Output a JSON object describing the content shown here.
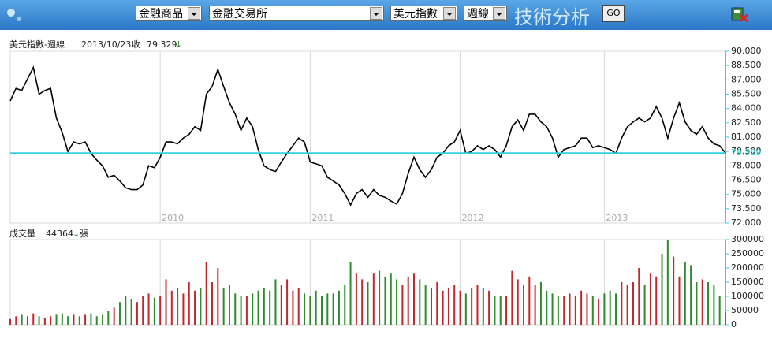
{
  "toolbar": {
    "product": "金融商品",
    "exchange": "金融交易所",
    "symbol": "美元指數",
    "period": "週線",
    "title": "技術分析",
    "button": "GO"
  },
  "chart_data": [
    {
      "type": "line",
      "title": "美元指數-週線",
      "date": "2013/10/23",
      "close_label": "收",
      "close": 79.329,
      "trend": "↓",
      "color": "#000000",
      "close_line_color": "#33d0e0",
      "grid": true,
      "categories": [
        null,
        null,
        null,
        null,
        null,
        null,
        null,
        null,
        null,
        null,
        null,
        null,
        null,
        null,
        null,
        null,
        null,
        null,
        null,
        null,
        null,
        null,
        null,
        null,
        null,
        null,
        "2010",
        null,
        null,
        null,
        null,
        null,
        null,
        null,
        null,
        null,
        null,
        null,
        null,
        null,
        null,
        null,
        null,
        null,
        null,
        null,
        null,
        null,
        null,
        null,
        null,
        null,
        "2011",
        null,
        null,
        null,
        null,
        null,
        null,
        null,
        null,
        null,
        null,
        null,
        null,
        null,
        null,
        null,
        null,
        null,
        null,
        null,
        null,
        null,
        null,
        null,
        null,
        null,
        "2012",
        null,
        null,
        null,
        null,
        null,
        null,
        null,
        null,
        null,
        null,
        null,
        null,
        null,
        null,
        null,
        null,
        null,
        null,
        null,
        null,
        null,
        null,
        null,
        null,
        "2013",
        null,
        null,
        null,
        null,
        null,
        null,
        null,
        null,
        null,
        null,
        null,
        null,
        null,
        null,
        null,
        null,
        null,
        null,
        null,
        null,
        null
      ],
      "values": [
        84.8,
        86.1,
        85.9,
        87.1,
        88.3,
        85.5,
        85.9,
        86.1,
        83,
        81.5,
        79.5,
        80.5,
        80.3,
        80.5,
        79.3,
        78.6,
        78,
        76.8,
        77,
        76.4,
        75.7,
        75.5,
        75.5,
        76,
        78,
        77.8,
        78.9,
        80.5,
        80.5,
        80.3,
        80.9,
        81.3,
        82.1,
        81.7,
        85.5,
        86.3,
        88.1,
        86.3,
        84.6,
        83.4,
        81.7,
        83,
        82.1,
        79.7,
        78,
        77.6,
        77.4,
        78.4,
        79.3,
        80.1,
        80.9,
        80.5,
        78.4,
        78.2,
        78,
        76.8,
        76.4,
        76,
        75.1,
        73.9,
        75.1,
        75.5,
        74.7,
        75.5,
        74.9,
        74.7,
        74.3,
        74,
        75.1,
        77.2,
        78.9,
        77.6,
        76.8,
        77.6,
        78.9,
        79.3,
        80.1,
        80.5,
        81.7,
        79.3,
        79.5,
        80.1,
        79.7,
        80.1,
        79.7,
        78.9,
        80.1,
        82.1,
        82.8,
        81.7,
        83.4,
        83.4,
        82.6,
        82.1,
        80.9,
        78.9,
        79.7,
        79.9,
        80.1,
        80.9,
        80.9,
        79.9,
        80.1,
        79.9,
        79.7,
        79.3,
        80.9,
        82.1,
        82.6,
        83,
        82.6,
        83,
        84.2,
        83,
        80.9,
        83,
        84.6,
        82.6,
        81.7,
        81.3,
        82.1,
        80.9,
        80.3,
        80.1,
        79.329
      ],
      "ylim": [
        72,
        90
      ],
      "yticks": [
        {
          "value": 90,
          "label": "90.000"
        },
        {
          "value": 88.5,
          "label": "88.500"
        },
        {
          "value": 87,
          "label": "87.000"
        },
        {
          "value": 85.5,
          "label": "85.500"
        },
        {
          "value": 84,
          "label": "84.000"
        },
        {
          "value": 82.5,
          "label": "82.500"
        },
        {
          "value": 81,
          "label": "81.000"
        },
        {
          "value": 79.5,
          "label": "79.500"
        },
        {
          "value": 78,
          "label": "78.000"
        },
        {
          "value": 76.5,
          "label": "76.500"
        },
        {
          "value": 75,
          "label": "75.000"
        },
        {
          "value": 73.5,
          "label": "73.500"
        },
        {
          "value": 72,
          "label": "72.000"
        }
      ]
    },
    {
      "type": "bar",
      "title": "成交量",
      "last": 44364,
      "trend": "↓",
      "unit": "張",
      "up_color": "#c0282e",
      "down_color": "#2e8b2e",
      "grid": true,
      "values": [
        20000,
        30000,
        35000,
        30000,
        40000,
        30000,
        25000,
        30000,
        35000,
        40000,
        30000,
        35000,
        30000,
        35000,
        40000,
        30000,
        35000,
        50000,
        60000,
        80000,
        100000,
        90000,
        80000,
        100000,
        110000,
        95000,
        100000,
        160000,
        120000,
        130000,
        110000,
        150000,
        120000,
        130000,
        220000,
        150000,
        200000,
        130000,
        140000,
        110000,
        100000,
        100000,
        110000,
        120000,
        130000,
        120000,
        160000,
        140000,
        160000,
        120000,
        130000,
        110000,
        100000,
        120000,
        100000,
        110000,
        110000,
        120000,
        140000,
        220000,
        180000,
        160000,
        150000,
        180000,
        190000,
        170000,
        180000,
        160000,
        140000,
        170000,
        180000,
        160000,
        140000,
        130000,
        150000,
        120000,
        130000,
        140000,
        120000,
        110000,
        130000,
        140000,
        130000,
        120000,
        100000,
        100000,
        100000,
        190000,
        160000,
        140000,
        170000,
        140000,
        150000,
        120000,
        110000,
        100000,
        100000,
        110000,
        100000,
        120000,
        110000,
        100000,
        90000,
        110000,
        120000,
        110000,
        150000,
        140000,
        150000,
        200000,
        140000,
        180000,
        170000,
        250000,
        300000,
        240000,
        170000,
        220000,
        210000,
        150000,
        160000,
        150000,
        140000,
        100000,
        44364
      ],
      "ylim": [
        0,
        300000
      ],
      "yticks": [
        0,
        50000,
        100000,
        150000,
        200000,
        250000,
        300000
      ]
    }
  ]
}
